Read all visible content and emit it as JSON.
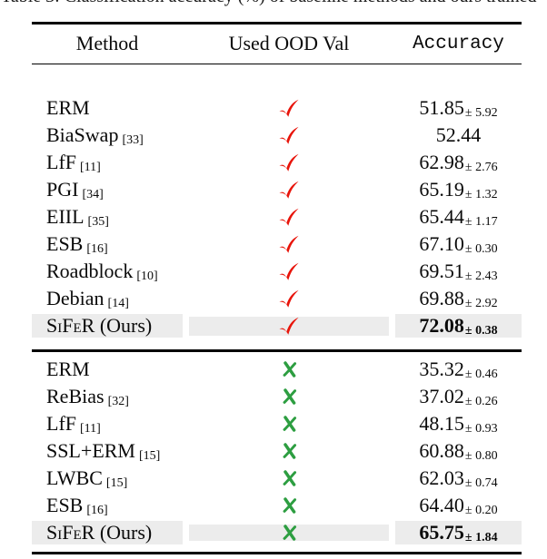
{
  "caption_clipped": "Table 3: Classification accuracy (%) of baseline methods and ours trained",
  "table": {
    "columns": [
      "Method",
      "Used OOD Val",
      "Accuracy"
    ],
    "pm_symbol": "±",
    "colors": {
      "check": "#e8140a",
      "cross": "#2d9e41",
      "highlight": "#ececec",
      "rule": "#000000",
      "text": "#0a0a0a"
    },
    "sections": [
      {
        "used_ood_val": "yes",
        "mark": "check",
        "rows": [
          {
            "method": "ERM",
            "suffix": "",
            "smallcaps": false,
            "ref": "",
            "value": "51.85",
            "err": "5.92",
            "ours": false
          },
          {
            "method": "BiaSwap",
            "suffix": "",
            "smallcaps": false,
            "ref": "33",
            "value": "52.44",
            "err": "",
            "ours": false
          },
          {
            "method": "LfF",
            "suffix": "",
            "smallcaps": false,
            "ref": "11",
            "value": "62.98",
            "err": "2.76",
            "ours": false
          },
          {
            "method": "PGI",
            "suffix": "",
            "smallcaps": false,
            "ref": "34",
            "value": "65.19",
            "err": "1.32",
            "ours": false
          },
          {
            "method": "EIIL",
            "suffix": "",
            "smallcaps": false,
            "ref": "35",
            "value": "65.44",
            "err": "1.17",
            "ours": false
          },
          {
            "method": "ESB",
            "suffix": "",
            "smallcaps": false,
            "ref": "16",
            "value": "67.10",
            "err": "0.30",
            "ours": false
          },
          {
            "method": "Roadblock",
            "suffix": "",
            "smallcaps": false,
            "ref": "10",
            "value": "69.51",
            "err": "2.43",
            "ours": false
          },
          {
            "method": "Debian",
            "suffix": "",
            "smallcaps": false,
            "ref": "14",
            "value": "69.88",
            "err": "2.92",
            "ours": false
          },
          {
            "method": "SiFeR",
            "suffix": " (Ours)",
            "smallcaps": true,
            "ref": "",
            "value": "72.08",
            "err": "0.38",
            "ours": true
          }
        ]
      },
      {
        "used_ood_val": "no",
        "mark": "cross",
        "rows": [
          {
            "method": "ERM",
            "suffix": "",
            "smallcaps": false,
            "ref": "",
            "value": "35.32",
            "err": "0.46",
            "ours": false
          },
          {
            "method": "ReBias",
            "suffix": "",
            "smallcaps": false,
            "ref": "32",
            "value": "37.02",
            "err": "0.26",
            "ours": false
          },
          {
            "method": "LfF",
            "suffix": "",
            "smallcaps": false,
            "ref": "11",
            "value": "48.15",
            "err": "0.93",
            "ours": false
          },
          {
            "method": "SSL+ERM",
            "suffix": "",
            "smallcaps": false,
            "ref": "15",
            "value": "60.88",
            "err": "0.80",
            "ours": false
          },
          {
            "method": "LWBC",
            "suffix": "",
            "smallcaps": false,
            "ref": "15",
            "value": "62.03",
            "err": "0.74",
            "ours": false
          },
          {
            "method": "ESB",
            "suffix": "",
            "smallcaps": false,
            "ref": "16",
            "value": "64.40",
            "err": "0.20",
            "ours": false
          },
          {
            "method": "SiFeR",
            "suffix": " (Ours)",
            "smallcaps": true,
            "ref": "",
            "value": "65.75",
            "err": "1.84",
            "ours": true
          }
        ]
      }
    ]
  }
}
